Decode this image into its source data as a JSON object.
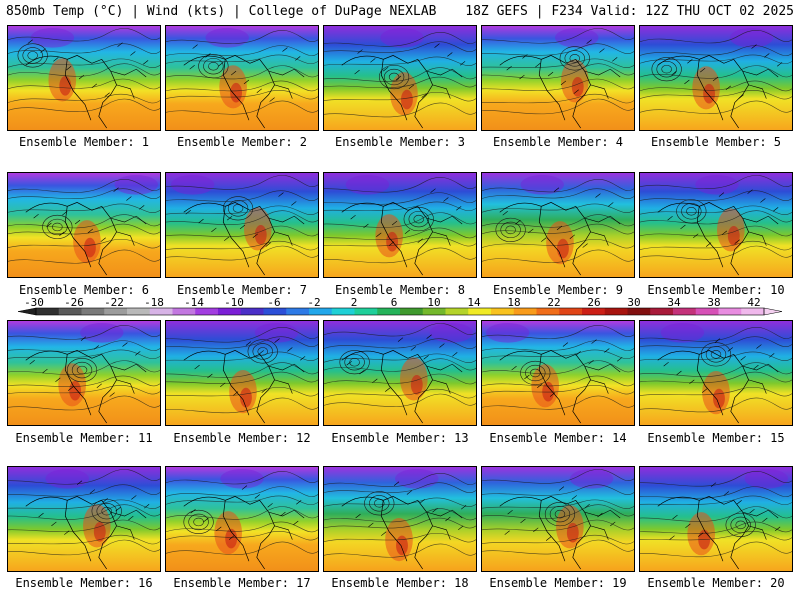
{
  "header": {
    "left": "850mb Temp (°C) | Wind (kts) | College of DuPage NEXLAB",
    "right": "18Z GEFS | F234 Valid: 12Z THU OCT 02 2025"
  },
  "panels": [
    {
      "label": "Ensemble Member: 1"
    },
    {
      "label": "Ensemble Member: 2"
    },
    {
      "label": "Ensemble Member: 3"
    },
    {
      "label": "Ensemble Member: 4"
    },
    {
      "label": "Ensemble Member: 5"
    },
    {
      "label": "Ensemble Member: 6"
    },
    {
      "label": "Ensemble Member: 7"
    },
    {
      "label": "Ensemble Member: 8"
    },
    {
      "label": "Ensemble Member: 9"
    },
    {
      "label": "Ensemble Member: 10"
    },
    {
      "label": "Ensemble Member: 11"
    },
    {
      "label": "Ensemble Member: 12"
    },
    {
      "label": "Ensemble Member: 13"
    },
    {
      "label": "Ensemble Member: 14"
    },
    {
      "label": "Ensemble Member: 15"
    },
    {
      "label": "Ensemble Member: 16"
    },
    {
      "label": "Ensemble Member: 17"
    },
    {
      "label": "Ensemble Member: 18"
    },
    {
      "label": "Ensemble Member: 19"
    },
    {
      "label": "Ensemble Member: 20"
    }
  ],
  "colorbar": {
    "ticks": [
      "-30",
      "-26",
      "-22",
      "-18",
      "-14",
      "-10",
      "-6",
      "-2",
      "2",
      "6",
      "10",
      "14",
      "18",
      "22",
      "26",
      "30",
      "34",
      "38",
      "42"
    ],
    "colors": [
      "#303030",
      "#5a5a5a",
      "#7a7a7a",
      "#9c9c9c",
      "#b9b9b9",
      "#d7b3e6",
      "#c277e0",
      "#a23de0",
      "#7b1fd6",
      "#4b2fc8",
      "#2c4fd8",
      "#2e7ae6",
      "#22a7ea",
      "#1fd0d6",
      "#1fcf9a",
      "#25b35a",
      "#3f9a2e",
      "#74b82c",
      "#b4d32a",
      "#f0ea25",
      "#f8c21f",
      "#f89b1b",
      "#f06d19",
      "#e04517",
      "#cc1f16",
      "#a8140f",
      "#821010",
      "#a81a3a",
      "#c4327a",
      "#d650b6",
      "#e88ce0",
      "#f0b8ec"
    ]
  }
}
